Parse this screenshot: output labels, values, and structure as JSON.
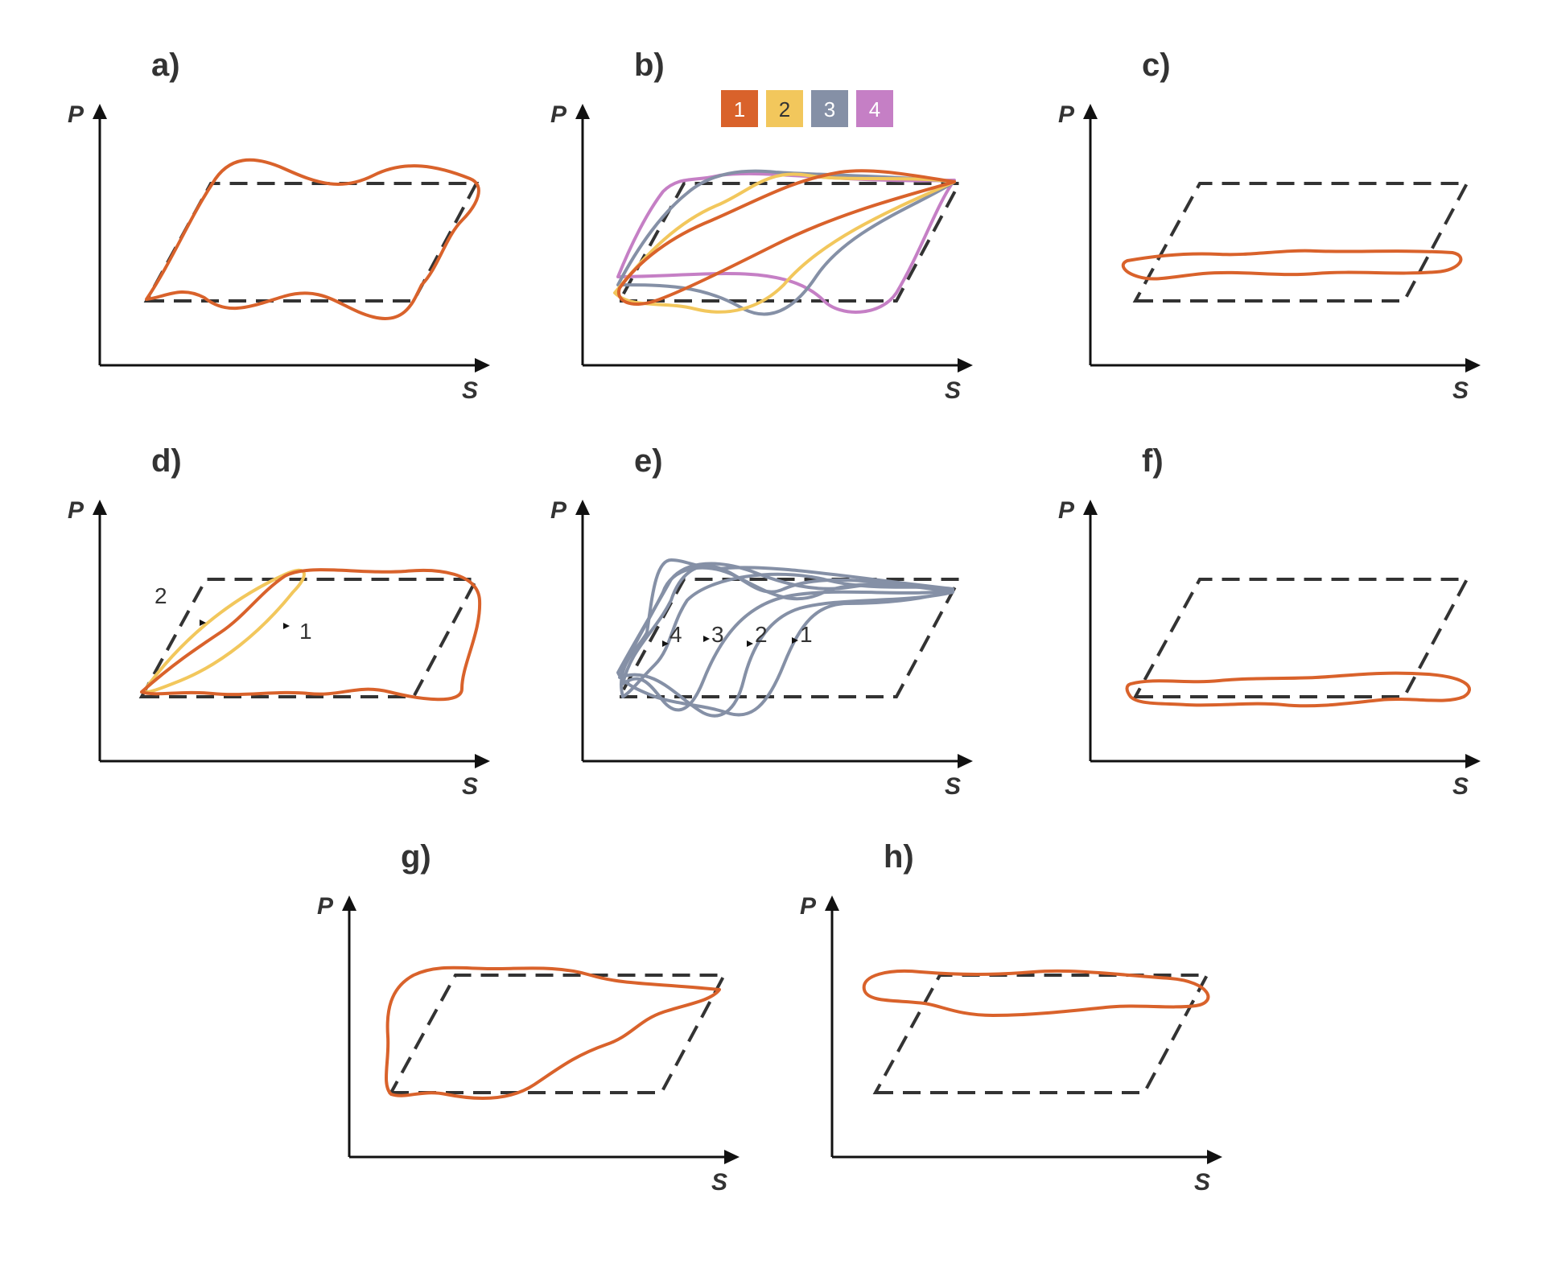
{
  "colors": {
    "loop1": "#d9622b",
    "loop2": "#f2c75c",
    "loop3": "#8590a6",
    "loop4": "#c57fc5",
    "reference": "#333333",
    "axis": "#111111"
  },
  "axes": {
    "y_label": "P",
    "x_label": "S"
  },
  "panels": [
    {
      "id": "a",
      "label": "a)"
    },
    {
      "id": "b",
      "label": "b)"
    },
    {
      "id": "c",
      "label": "c)"
    },
    {
      "id": "d",
      "label": "d)"
    },
    {
      "id": "e",
      "label": "e)"
    },
    {
      "id": "f",
      "label": "f)"
    },
    {
      "id": "g",
      "label": "g)"
    },
    {
      "id": "h",
      "label": "h)"
    }
  ],
  "legend_b": [
    "1",
    "2",
    "3",
    "4"
  ],
  "annotations_d": [
    "2",
    "1"
  ],
  "annotations_e": [
    "4",
    "3",
    "2",
    "1"
  ]
}
